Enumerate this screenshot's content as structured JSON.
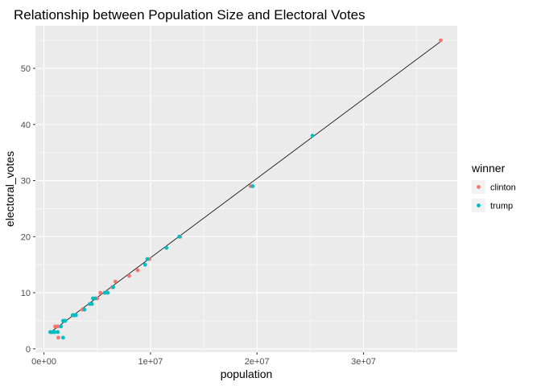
{
  "chart_data": {
    "type": "scatter",
    "title": "Relationship between Population Size and Electoral Votes",
    "xlabel": "population",
    "ylabel": "electoral_votes",
    "xlim": [
      -800000,
      38800000
    ],
    "ylim": [
      -0.6,
      57.6
    ],
    "x_ticks": [
      0,
      10000000,
      20000000,
      30000000
    ],
    "x_tick_labels": [
      "0e+00",
      "1e+07",
      "2e+07",
      "3e+07"
    ],
    "y_ticks": [
      0,
      10,
      20,
      30,
      40,
      50
    ],
    "y_tick_labels": [
      "0",
      "10",
      "20",
      "30",
      "40",
      "50"
    ],
    "grid": true,
    "legend": {
      "title": "winner",
      "placement": "right",
      "entries": [
        {
          "label": "clinton",
          "color": "#F8766D"
        },
        {
          "label": "trump",
          "color": "#00BFC4"
        }
      ]
    },
    "fit_line": {
      "x": [
        580000,
        37250000
      ],
      "y": [
        2.9,
        54.8
      ],
      "color": "#000000"
    },
    "series": [
      {
        "name": "clinton",
        "color": "#F8766D",
        "points": [
          [
            37250000,
            55
          ],
          [
            19400000,
            29
          ],
          [
            12800000,
            20
          ],
          [
            9900000,
            16
          ],
          [
            8800000,
            14
          ],
          [
            8000000,
            13
          ],
          [
            6700000,
            12
          ],
          [
            6400000,
            11
          ],
          [
            5800000,
            10
          ],
          [
            5300000,
            10
          ],
          [
            5000000,
            9
          ],
          [
            3800000,
            7
          ],
          [
            3600000,
            7
          ],
          [
            2700000,
            6
          ],
          [
            2000000,
            5
          ],
          [
            1300000,
            4
          ],
          [
            1050000,
            4
          ],
          [
            1350000,
            2
          ],
          [
            900000,
            3
          ],
          [
            600000,
            3
          ],
          [
            700000,
            3
          ]
        ]
      },
      {
        "name": "trump",
        "color": "#00BFC4",
        "points": [
          [
            25200000,
            38
          ],
          [
            19600000,
            29
          ],
          [
            12700000,
            20
          ],
          [
            11500000,
            18
          ],
          [
            9700000,
            16
          ],
          [
            9500000,
            15
          ],
          [
            6500000,
            11
          ],
          [
            6000000,
            10
          ],
          [
            5700000,
            10
          ],
          [
            4800000,
            9
          ],
          [
            4600000,
            9
          ],
          [
            4500000,
            8
          ],
          [
            4300000,
            8
          ],
          [
            3800000,
            7
          ],
          [
            3000000,
            6
          ],
          [
            2900000,
            6
          ],
          [
            2800000,
            6
          ],
          [
            2700000,
            6
          ],
          [
            2000000,
            5
          ],
          [
            1800000,
            5
          ],
          [
            1600000,
            4
          ],
          [
            1300000,
            3
          ],
          [
            1800000,
            2
          ],
          [
            900000,
            3
          ],
          [
            700000,
            3
          ],
          [
            600000,
            3
          ],
          [
            800000,
            3
          ],
          [
            1000000,
            3
          ]
        ]
      }
    ]
  }
}
